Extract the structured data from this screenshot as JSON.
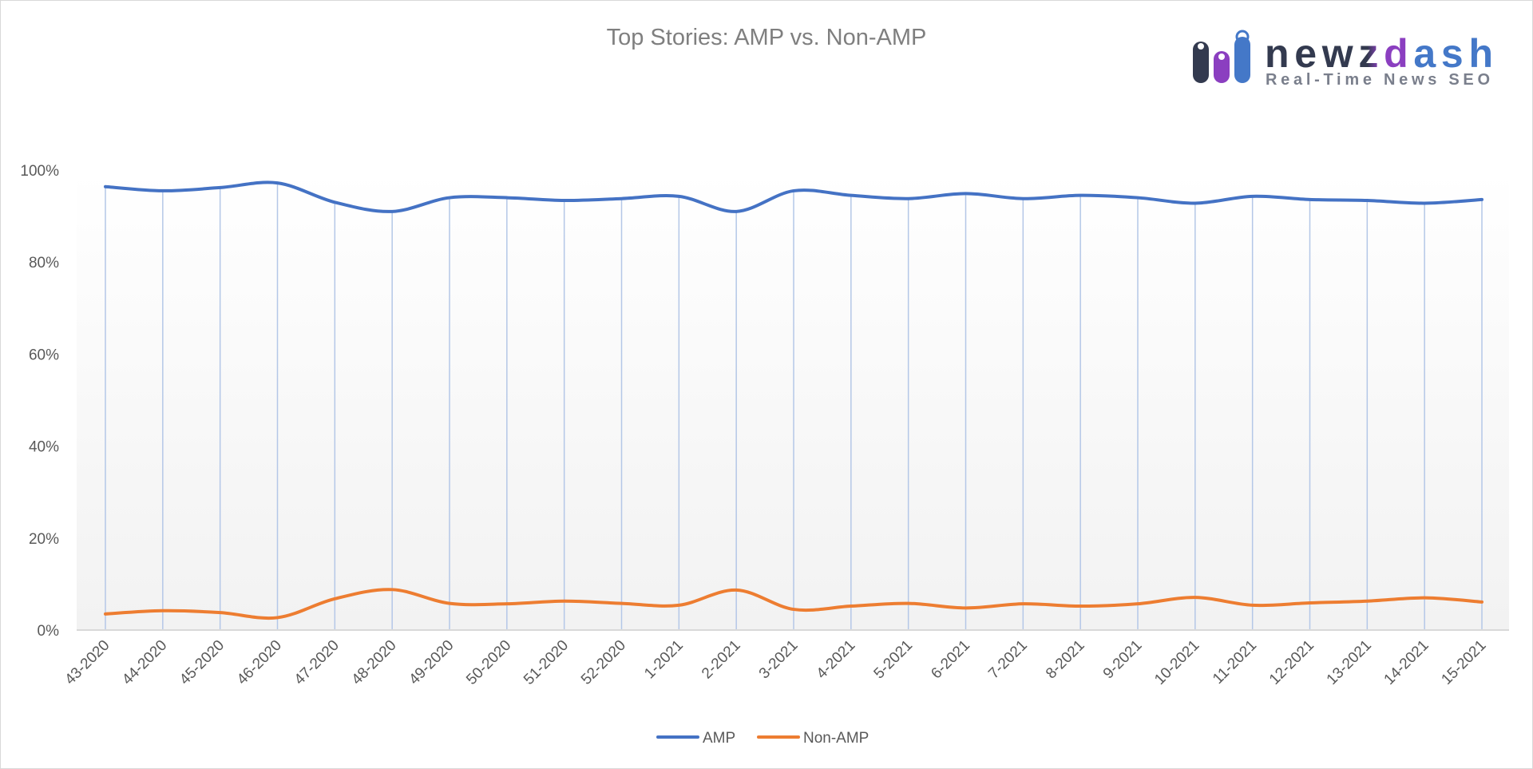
{
  "logo": {
    "text": "newzdash",
    "tagline": "Real-Time News SEO"
  },
  "colors": {
    "amp": "#4472c4",
    "non_amp": "#ed7d31",
    "grid": "#b4c7e7",
    "logo_dark": "#333a4f",
    "logo_purple": "#8b3fc0",
    "logo_blue": "#4478c8"
  },
  "chart_data": {
    "type": "line",
    "title": "Top Stories: AMP vs. Non-AMP",
    "smoothed": true,
    "categories": [
      "43-2020",
      "44-2020",
      "45-2020",
      "46-2020",
      "47-2020",
      "48-2020",
      "49-2020",
      "50-2020",
      "51-2020",
      "52-2020",
      "1-2021",
      "2-2021",
      "3-2021",
      "4-2021",
      "5-2021",
      "6-2021",
      "7-2021",
      "8-2021",
      "9-2021",
      "10-2021",
      "11-2021",
      "12-2021",
      "13-2021",
      "14-2021",
      "15-2021"
    ],
    "series": [
      {
        "name": "AMP",
        "values": [
          96.4,
          95.5,
          96.2,
          97.2,
          93.0,
          91.0,
          94.0,
          94.0,
          93.4,
          93.8,
          94.3,
          91.0,
          95.5,
          94.5,
          93.8,
          94.9,
          93.8,
          94.5,
          94.0,
          92.8,
          94.3,
          93.6,
          93.4,
          92.8,
          93.6
        ]
      },
      {
        "name": "Non-AMP",
        "values": [
          3.5,
          4.2,
          3.8,
          2.7,
          6.8,
          8.8,
          5.8,
          5.7,
          6.3,
          5.8,
          5.4,
          8.7,
          4.5,
          5.2,
          5.8,
          4.8,
          5.7,
          5.2,
          5.7,
          7.1,
          5.4,
          5.9,
          6.3,
          7.0,
          6.1
        ]
      }
    ],
    "yticks": [
      "0%",
      "20%",
      "40%",
      "60%",
      "80%",
      "100%"
    ],
    "ylim": [
      0,
      100
    ],
    "grid": "vertical",
    "legend": "bottom"
  }
}
